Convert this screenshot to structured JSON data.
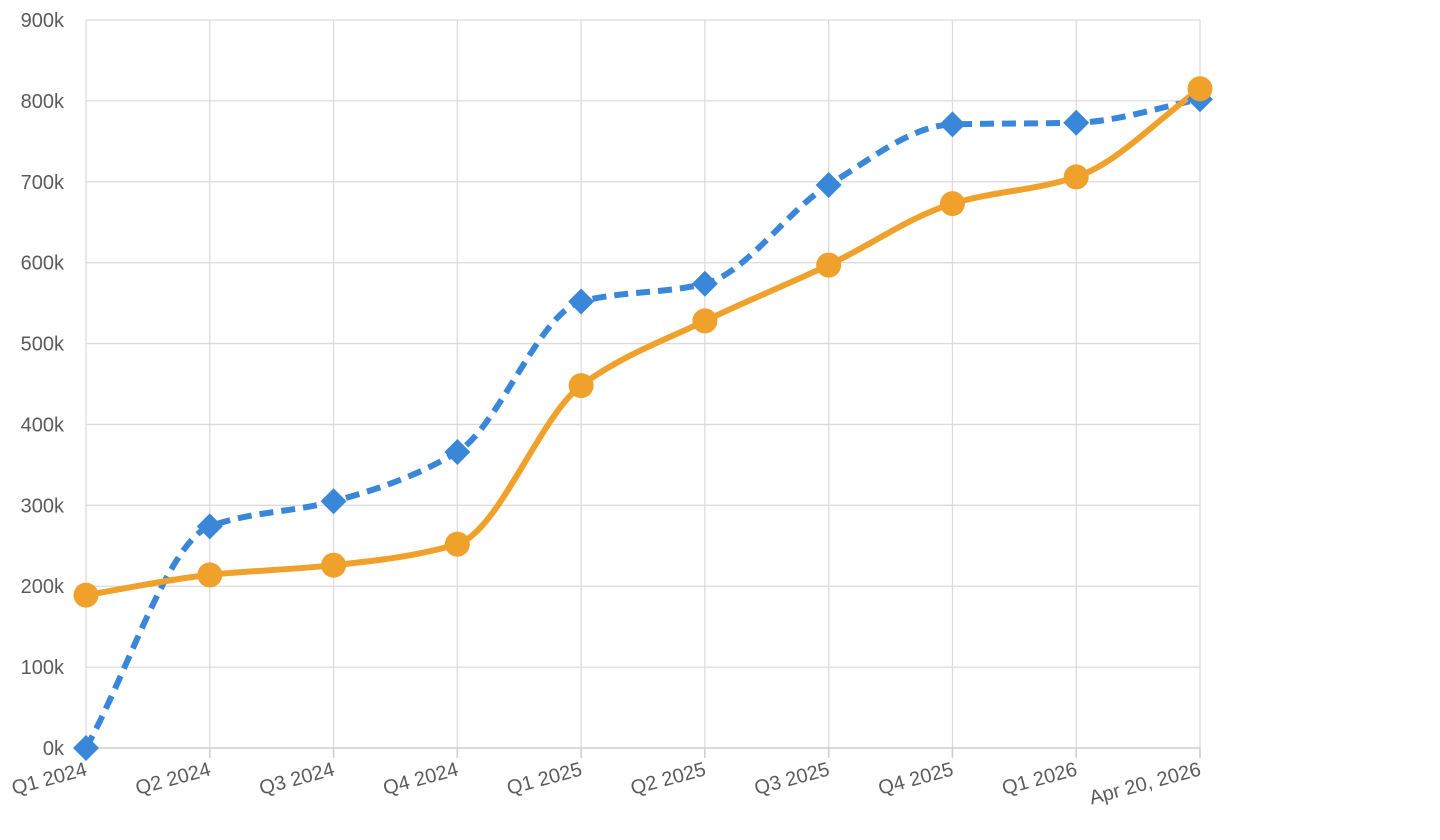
{
  "chart_data": {
    "type": "line",
    "title": "",
    "xlabel": "",
    "ylabel": "",
    "categories": [
      "Q1 2024",
      "Q2 2024",
      "Q3 2024",
      "Q4 2024",
      "Q1 2025",
      "Q2 2025",
      "Q3 2025",
      "Q4 2025",
      "Q1 2026",
      "Apr 20, 2026"
    ],
    "ylim": [
      0,
      900000
    ],
    "yticks": [
      {
        "value": 0,
        "label": "0k"
      },
      {
        "value": 100000,
        "label": "100k"
      },
      {
        "value": 200000,
        "label": "200k"
      },
      {
        "value": 300000,
        "label": "300k"
      },
      {
        "value": 400000,
        "label": "400k"
      },
      {
        "value": 500000,
        "label": "500k"
      },
      {
        "value": 600000,
        "label": "600k"
      },
      {
        "value": 700000,
        "label": "700k"
      },
      {
        "value": 800000,
        "label": "800k"
      },
      {
        "value": 900000,
        "label": "900k"
      }
    ],
    "grid": true,
    "legend": "none",
    "series": [
      {
        "color": "#3a87d9",
        "line_style": "dashed",
        "marker": "diamond",
        "smooth": true,
        "values": [
          0,
          274000,
          305000,
          366000,
          552000,
          574000,
          696000,
          771000,
          773000,
          802000
        ]
      },
      {
        "color": "#f0a12c",
        "line_style": "solid",
        "marker": "circle",
        "smooth": true,
        "values": [
          189000,
          214000,
          226000,
          252000,
          448000,
          528000,
          597000,
          673000,
          706000,
          815000
        ]
      }
    ]
  }
}
